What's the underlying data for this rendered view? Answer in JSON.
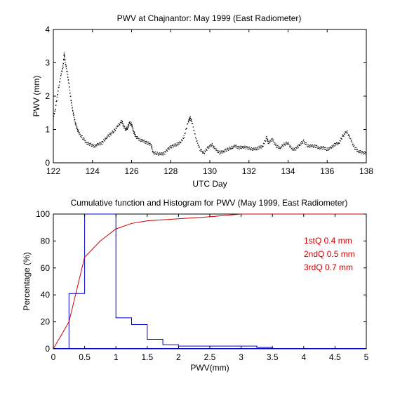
{
  "chart_data": [
    {
      "type": "scatter",
      "title": "PWV at Chajnantor: May 1999 (East Radiometer)",
      "xlabel": "UTC Day",
      "ylabel": "PWV (mm)",
      "xlim": [
        122,
        138
      ],
      "ylim": [
        0,
        4
      ],
      "xticks": [
        "122",
        "124",
        "126",
        "128",
        "130",
        "132",
        "134",
        "136",
        "138"
      ],
      "yticks": [
        "0",
        "1",
        "2",
        "3",
        "4"
      ],
      "grid": false,
      "series": [
        {
          "color": "#000000",
          "points": [
            [
              122.0,
              1.35
            ],
            [
              122.1,
              1.6
            ],
            [
              122.2,
              2.0
            ],
            [
              122.3,
              2.35
            ],
            [
              122.4,
              2.65
            ],
            [
              122.5,
              2.9
            ],
            [
              122.55,
              3.3
            ],
            [
              122.6,
              3.05
            ],
            [
              122.7,
              2.75
            ],
            [
              122.8,
              2.35
            ],
            [
              122.9,
              1.9
            ],
            [
              123.0,
              1.55
            ],
            [
              123.1,
              1.25
            ],
            [
              123.2,
              1.05
            ],
            [
              123.3,
              0.9
            ],
            [
              123.5,
              0.75
            ],
            [
              123.7,
              0.6
            ],
            [
              123.9,
              0.55
            ],
            [
              124.1,
              0.5
            ],
            [
              124.3,
              0.55
            ],
            [
              124.5,
              0.6
            ],
            [
              124.7,
              0.75
            ],
            [
              124.9,
              0.85
            ],
            [
              125.1,
              0.95
            ],
            [
              125.3,
              1.1
            ],
            [
              125.5,
              1.25
            ],
            [
              125.6,
              1.1
            ],
            [
              125.7,
              1.0
            ],
            [
              125.8,
              1.05
            ],
            [
              125.9,
              1.2
            ],
            [
              126.0,
              1.15
            ],
            [
              126.1,
              0.95
            ],
            [
              126.2,
              0.8
            ],
            [
              126.4,
              0.7
            ],
            [
              126.6,
              0.65
            ],
            [
              126.8,
              0.6
            ],
            [
              127.0,
              0.55
            ],
            [
              127.1,
              0.3
            ],
            [
              127.3,
              0.28
            ],
            [
              127.5,
              0.25
            ],
            [
              127.7,
              0.3
            ],
            [
              127.9,
              0.45
            ],
            [
              128.1,
              0.5
            ],
            [
              128.3,
              0.55
            ],
            [
              128.5,
              0.6
            ],
            [
              128.7,
              0.8
            ],
            [
              128.9,
              1.25
            ],
            [
              129.0,
              1.35
            ],
            [
              129.1,
              1.2
            ],
            [
              129.3,
              0.7
            ],
            [
              129.5,
              0.4
            ],
            [
              129.7,
              0.3
            ],
            [
              129.9,
              0.45
            ],
            [
              130.1,
              0.55
            ],
            [
              130.3,
              0.4
            ],
            [
              130.5,
              0.3
            ],
            [
              130.7,
              0.35
            ],
            [
              130.9,
              0.4
            ],
            [
              131.1,
              0.45
            ],
            [
              131.3,
              0.5
            ],
            [
              131.5,
              0.45
            ],
            [
              131.7,
              0.48
            ],
            [
              131.9,
              0.45
            ],
            [
              132.1,
              0.42
            ],
            [
              132.3,
              0.4
            ],
            [
              132.5,
              0.45
            ],
            [
              132.7,
              0.5
            ],
            [
              132.9,
              0.75
            ],
            [
              133.0,
              0.6
            ],
            [
              133.2,
              0.7
            ],
            [
              133.4,
              0.5
            ],
            [
              133.6,
              0.45
            ],
            [
              133.8,
              0.55
            ],
            [
              134.0,
              0.6
            ],
            [
              134.2,
              0.4
            ],
            [
              134.4,
              0.42
            ],
            [
              134.6,
              0.55
            ],
            [
              134.8,
              0.65
            ],
            [
              135.0,
              0.5
            ],
            [
              135.2,
              0.5
            ],
            [
              135.4,
              0.5
            ],
            [
              135.6,
              0.45
            ],
            [
              135.8,
              0.45
            ],
            [
              136.0,
              0.4
            ],
            [
              136.2,
              0.45
            ],
            [
              136.4,
              0.55
            ],
            [
              136.6,
              0.6
            ],
            [
              136.8,
              0.8
            ],
            [
              137.0,
              0.95
            ],
            [
              137.2,
              0.7
            ],
            [
              137.4,
              0.45
            ],
            [
              137.6,
              0.35
            ],
            [
              137.8,
              0.3
            ],
            [
              138.0,
              0.3
            ]
          ]
        }
      ]
    },
    {
      "type": "line",
      "title": "Cumulative function and Histogram for PWV (May 1999, East Radiometer)",
      "xlabel": "PWV(mm)",
      "ylabel": "Percentage (%)",
      "xlim": [
        0,
        5
      ],
      "ylim": [
        0,
        100
      ],
      "xticks": [
        "0",
        "0.5",
        "1",
        "1.5",
        "2",
        "2.5",
        "3",
        "3.5",
        "4",
        "4.5",
        "5"
      ],
      "yticks": [
        "0",
        "20",
        "40",
        "60",
        "80",
        "100"
      ],
      "grid": false,
      "series": [
        {
          "color": "#0000cc",
          "kind": "histogram",
          "bin_width": 0.25,
          "bin_edges_start": 0.25,
          "values": [
            41,
            100,
            100,
            23,
            18,
            7,
            3,
            2,
            2,
            2,
            2,
            2,
            1
          ]
        },
        {
          "color": "#cc0000",
          "kind": "cumulative",
          "x": [
            0,
            0.25,
            0.5,
            0.75,
            1.0,
            1.25,
            1.5,
            2.0,
            2.5,
            3.0,
            5.0
          ],
          "y": [
            0,
            20,
            68,
            80,
            89,
            93,
            95,
            96.5,
            98,
            100,
            100
          ]
        }
      ],
      "annotations": [
        "1stQ 0.4 mm",
        "2ndQ 0.5 mm",
        "3rdQ 0.7 mm"
      ],
      "annotation_color": "#cc0000"
    }
  ]
}
